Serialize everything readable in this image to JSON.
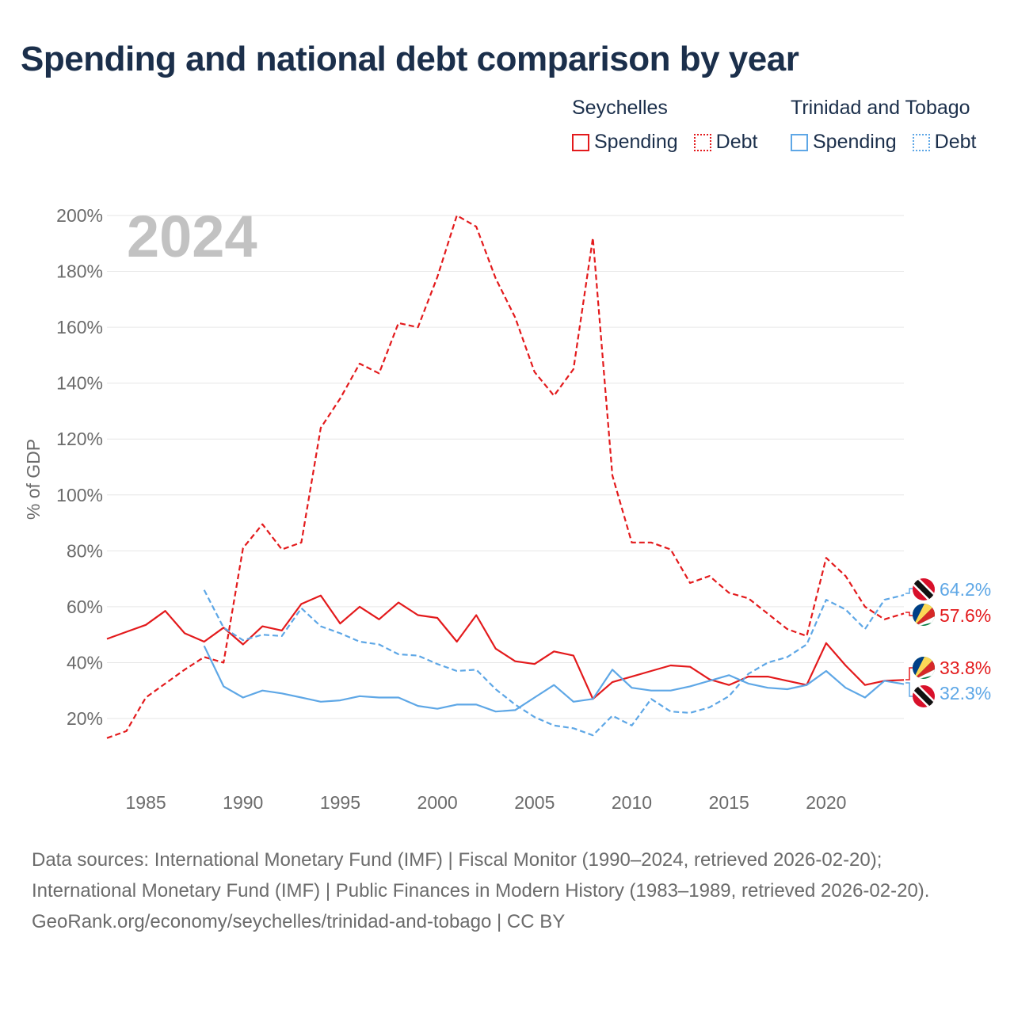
{
  "title": "Spending and national debt comparison by year",
  "legend": {
    "groups": [
      {
        "country": "Seychelles",
        "color": "#e31a1c",
        "items": [
          {
            "label": "Spending",
            "style": "solid"
          },
          {
            "label": "Debt",
            "style": "dotted"
          }
        ]
      },
      {
        "country": "Trinidad and Tobago",
        "color": "#5ea7e6",
        "items": [
          {
            "label": "Spending",
            "style": "solid"
          },
          {
            "label": "Debt",
            "style": "dotted"
          }
        ]
      }
    ]
  },
  "chart_data": {
    "type": "line",
    "ylabel": "% of GDP",
    "xlabel": "",
    "year_watermark": "2024",
    "xlim": [
      1983,
      2024
    ],
    "ylim": [
      0,
      205
    ],
    "yticks": [
      20,
      40,
      60,
      80,
      100,
      120,
      140,
      160,
      180,
      200
    ],
    "ytick_labels": [
      "20%",
      "40%",
      "60%",
      "80%",
      "100%",
      "120%",
      "140%",
      "160%",
      "180%",
      "200%"
    ],
    "xticks": [
      1985,
      1990,
      1995,
      2000,
      2005,
      2010,
      2015,
      2020
    ],
    "xtick_labels": [
      "1985",
      "1990",
      "1995",
      "2000",
      "2005",
      "2010",
      "2015",
      "2020"
    ],
    "series": [
      {
        "name": "Seychelles Spending",
        "country": "Seychelles",
        "color": "#e31a1c",
        "dash": "none",
        "label": "33.8%",
        "x": [
          1983,
          1984,
          1985,
          1986,
          1987,
          1988,
          1989,
          1990,
          1991,
          1992,
          1993,
          1994,
          1995,
          1996,
          1997,
          1998,
          1999,
          2000,
          2001,
          2002,
          2003,
          2004,
          2005,
          2006,
          2007,
          2008,
          2009,
          2010,
          2011,
          2012,
          2013,
          2014,
          2015,
          2016,
          2017,
          2018,
          2019,
          2020,
          2021,
          2022,
          2023,
          2024
        ],
        "y": [
          48.5,
          51,
          53.5,
          58.5,
          50.5,
          47.5,
          52.5,
          46.5,
          53,
          51.5,
          61,
          64,
          54,
          60,
          55.5,
          61.5,
          57,
          56,
          47.5,
          57,
          45,
          40.5,
          39.5,
          44,
          42.5,
          27,
          33,
          35,
          37,
          39,
          38.5,
          34,
          32,
          35,
          35,
          33.5,
          32,
          47,
          39,
          32,
          33.5,
          33.8
        ]
      },
      {
        "name": "Seychelles Debt",
        "country": "Seychelles",
        "color": "#e31a1c",
        "dash": "7 4",
        "label": "57.6%",
        "x": [
          1983,
          1984,
          1985,
          1986,
          1987,
          1988,
          1989,
          1990,
          1991,
          1992,
          1993,
          1994,
          1995,
          1996,
          1997,
          1998,
          1999,
          2000,
          2001,
          2002,
          2003,
          2004,
          2005,
          2006,
          2007,
          2008,
          2009,
          2010,
          2011,
          2012,
          2013,
          2014,
          2015,
          2016,
          2017,
          2018,
          2019,
          2020,
          2021,
          2022,
          2023,
          2024
        ],
        "y": [
          13,
          15.5,
          27.5,
          32.5,
          37.5,
          42,
          40,
          81,
          89.5,
          80.5,
          83,
          124,
          134.5,
          147,
          143.5,
          161.5,
          160,
          178,
          200,
          196,
          177.5,
          163.5,
          144,
          135.5,
          145,
          192,
          107,
          83,
          83,
          80.5,
          68.5,
          71,
          65,
          63,
          57.5,
          52,
          49.5,
          77.5,
          71,
          60,
          55.5,
          57.6
        ]
      },
      {
        "name": "Trinidad and Tobago Spending",
        "country": "Trinidad and Tobago",
        "color": "#5ea7e6",
        "dash": "none",
        "label": "32.3%",
        "x": [
          1988,
          1989,
          1990,
          1991,
          1992,
          1993,
          1994,
          1995,
          1996,
          1997,
          1998,
          1999,
          2000,
          2001,
          2002,
          2003,
          2004,
          2005,
          2006,
          2007,
          2008,
          2009,
          2010,
          2011,
          2012,
          2013,
          2014,
          2015,
          2016,
          2017,
          2018,
          2019,
          2020,
          2021,
          2022,
          2023,
          2024
        ],
        "y": [
          46,
          31.5,
          27.5,
          30,
          29,
          27.5,
          26,
          26.5,
          28,
          27.5,
          27.5,
          24.5,
          23.5,
          25,
          25,
          22.5,
          23,
          27.5,
          32,
          26,
          27,
          37.5,
          31,
          30,
          30,
          31.5,
          33.5,
          35.5,
          32.5,
          31,
          30.5,
          32,
          37,
          31,
          27.5,
          33.5,
          32.3
        ]
      },
      {
        "name": "Trinidad and Tobago Debt",
        "country": "Trinidad and Tobago",
        "color": "#5ea7e6",
        "dash": "7 4",
        "label": "64.2%",
        "x": [
          1988,
          1989,
          1990,
          1991,
          1992,
          1993,
          1994,
          1995,
          1996,
          1997,
          1998,
          1999,
          2000,
          2001,
          2002,
          2003,
          2004,
          2005,
          2006,
          2007,
          2008,
          2009,
          2010,
          2011,
          2012,
          2013,
          2014,
          2015,
          2016,
          2017,
          2018,
          2019,
          2020,
          2021,
          2022,
          2023,
          2024
        ],
        "y": [
          66,
          52.5,
          48,
          50,
          49.5,
          59.5,
          53,
          50.5,
          47.5,
          46.5,
          43,
          42.5,
          39.5,
          37,
          37.5,
          30.5,
          25,
          20.5,
          17.5,
          16.5,
          14,
          21,
          17.5,
          27,
          22.5,
          22,
          24,
          28,
          36,
          40,
          42,
          46.5,
          62.5,
          59,
          52,
          62.5,
          64.2
        ]
      }
    ]
  },
  "footer": {
    "sources": "Data sources: International Monetary Fund (IMF) | Fiscal Monitor (1990–2024, retrieved 2026-02-20); International Monetary Fund (IMF) | Public Finances in Modern History (1983–1989, retrieved 2026-02-20).",
    "credit": "GeoRank.org/economy/seychelles/trinidad-and-tobago | CC BY"
  }
}
